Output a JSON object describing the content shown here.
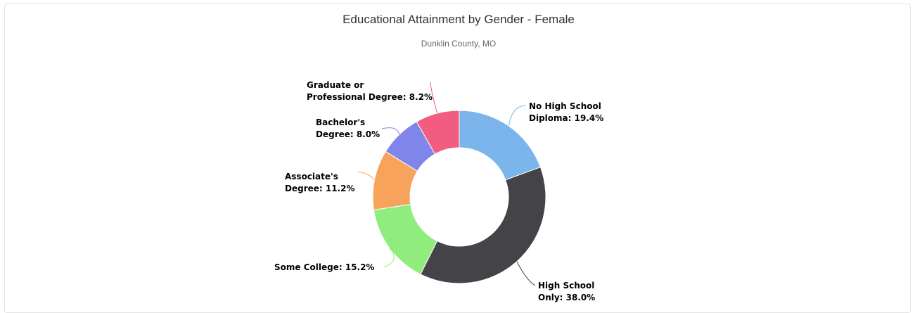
{
  "chart_data": {
    "type": "pie",
    "variant": "donut",
    "title": "Educational Attainment by Gender - Female",
    "subtitle": "Dunklin County, MO",
    "slices": [
      {
        "label": "No High School Diploma",
        "value": 19.4,
        "display": "19.4%",
        "color": "#7cb5ec",
        "label_lines": [
          "No High School",
          "Diploma: 19.4%"
        ]
      },
      {
        "label": "High School Only",
        "value": 38.0,
        "display": "38.0%",
        "color": "#434348",
        "label_lines": [
          "High School",
          "Only: 38.0%"
        ]
      },
      {
        "label": "Some College",
        "value": 15.2,
        "display": "15.2%",
        "color": "#90ed7d",
        "label_lines": [
          "Some College: 15.2%"
        ]
      },
      {
        "label": "Associate's Degree",
        "value": 11.2,
        "display": "11.2%",
        "color": "#f7a35c",
        "label_lines": [
          "Associate's",
          "Degree: 11.2%"
        ]
      },
      {
        "label": "Bachelor's Degree",
        "value": 8.0,
        "display": "8.0%",
        "color": "#8085e9",
        "label_lines": [
          "Bachelor's",
          "Degree: 8.0%"
        ]
      },
      {
        "label": "Graduate or Professional Degree",
        "value": 8.2,
        "display": "8.2%",
        "color": "#f15c80",
        "label_lines": [
          "Graduate or",
          "Professional Degree: 8.2%"
        ]
      }
    ]
  }
}
